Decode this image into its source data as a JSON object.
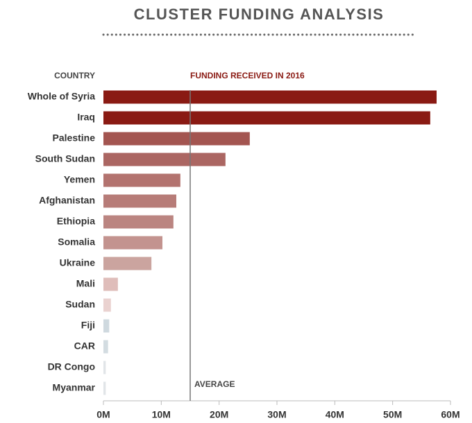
{
  "chart_data": {
    "type": "bar",
    "orientation": "horizontal",
    "title": "CLUSTER FUNDING ANALYSIS",
    "category_header": "COUNTRY",
    "value_header": "FUNDING RECEIVED IN 2016",
    "categories": [
      "Whole of Syria",
      "Iraq",
      "Palestine",
      "South Sudan",
      "Yemen",
      "Afghanistan",
      "Ethiopia",
      "Somalia",
      "Ukraine",
      "Mali",
      "Sudan",
      "Fiji",
      "CAR",
      "DR Congo",
      "Myanmar"
    ],
    "values": [
      57600000,
      56500000,
      25300000,
      21100000,
      13300000,
      12600000,
      12100000,
      10200000,
      8300000,
      2500000,
      1300000,
      1000000,
      800000,
      400000,
      400000
    ],
    "colors": [
      "#8a1a13",
      "#8a1a13",
      "#a35550",
      "#ab6662",
      "#b3736f",
      "#b77c78",
      "#bb8581",
      "#c3938f",
      "#cba49f",
      "#dfbdba",
      "#ead2d0",
      "#cfd9df",
      "#d3dce1",
      "#e1e5e8",
      "#e1e5e8"
    ],
    "average": {
      "value": 15000000,
      "label": "AVERAGE"
    },
    "xlim": [
      0,
      60000000
    ],
    "xticks": [
      {
        "value": 0,
        "label": "0M"
      },
      {
        "value": 10000000,
        "label": "10M"
      },
      {
        "value": 20000000,
        "label": "20M"
      },
      {
        "value": 30000000,
        "label": "30M"
      },
      {
        "value": 40000000,
        "label": "40M"
      },
      {
        "value": 50000000,
        "label": "50M"
      },
      {
        "value": 60000000,
        "label": "60M"
      }
    ]
  }
}
